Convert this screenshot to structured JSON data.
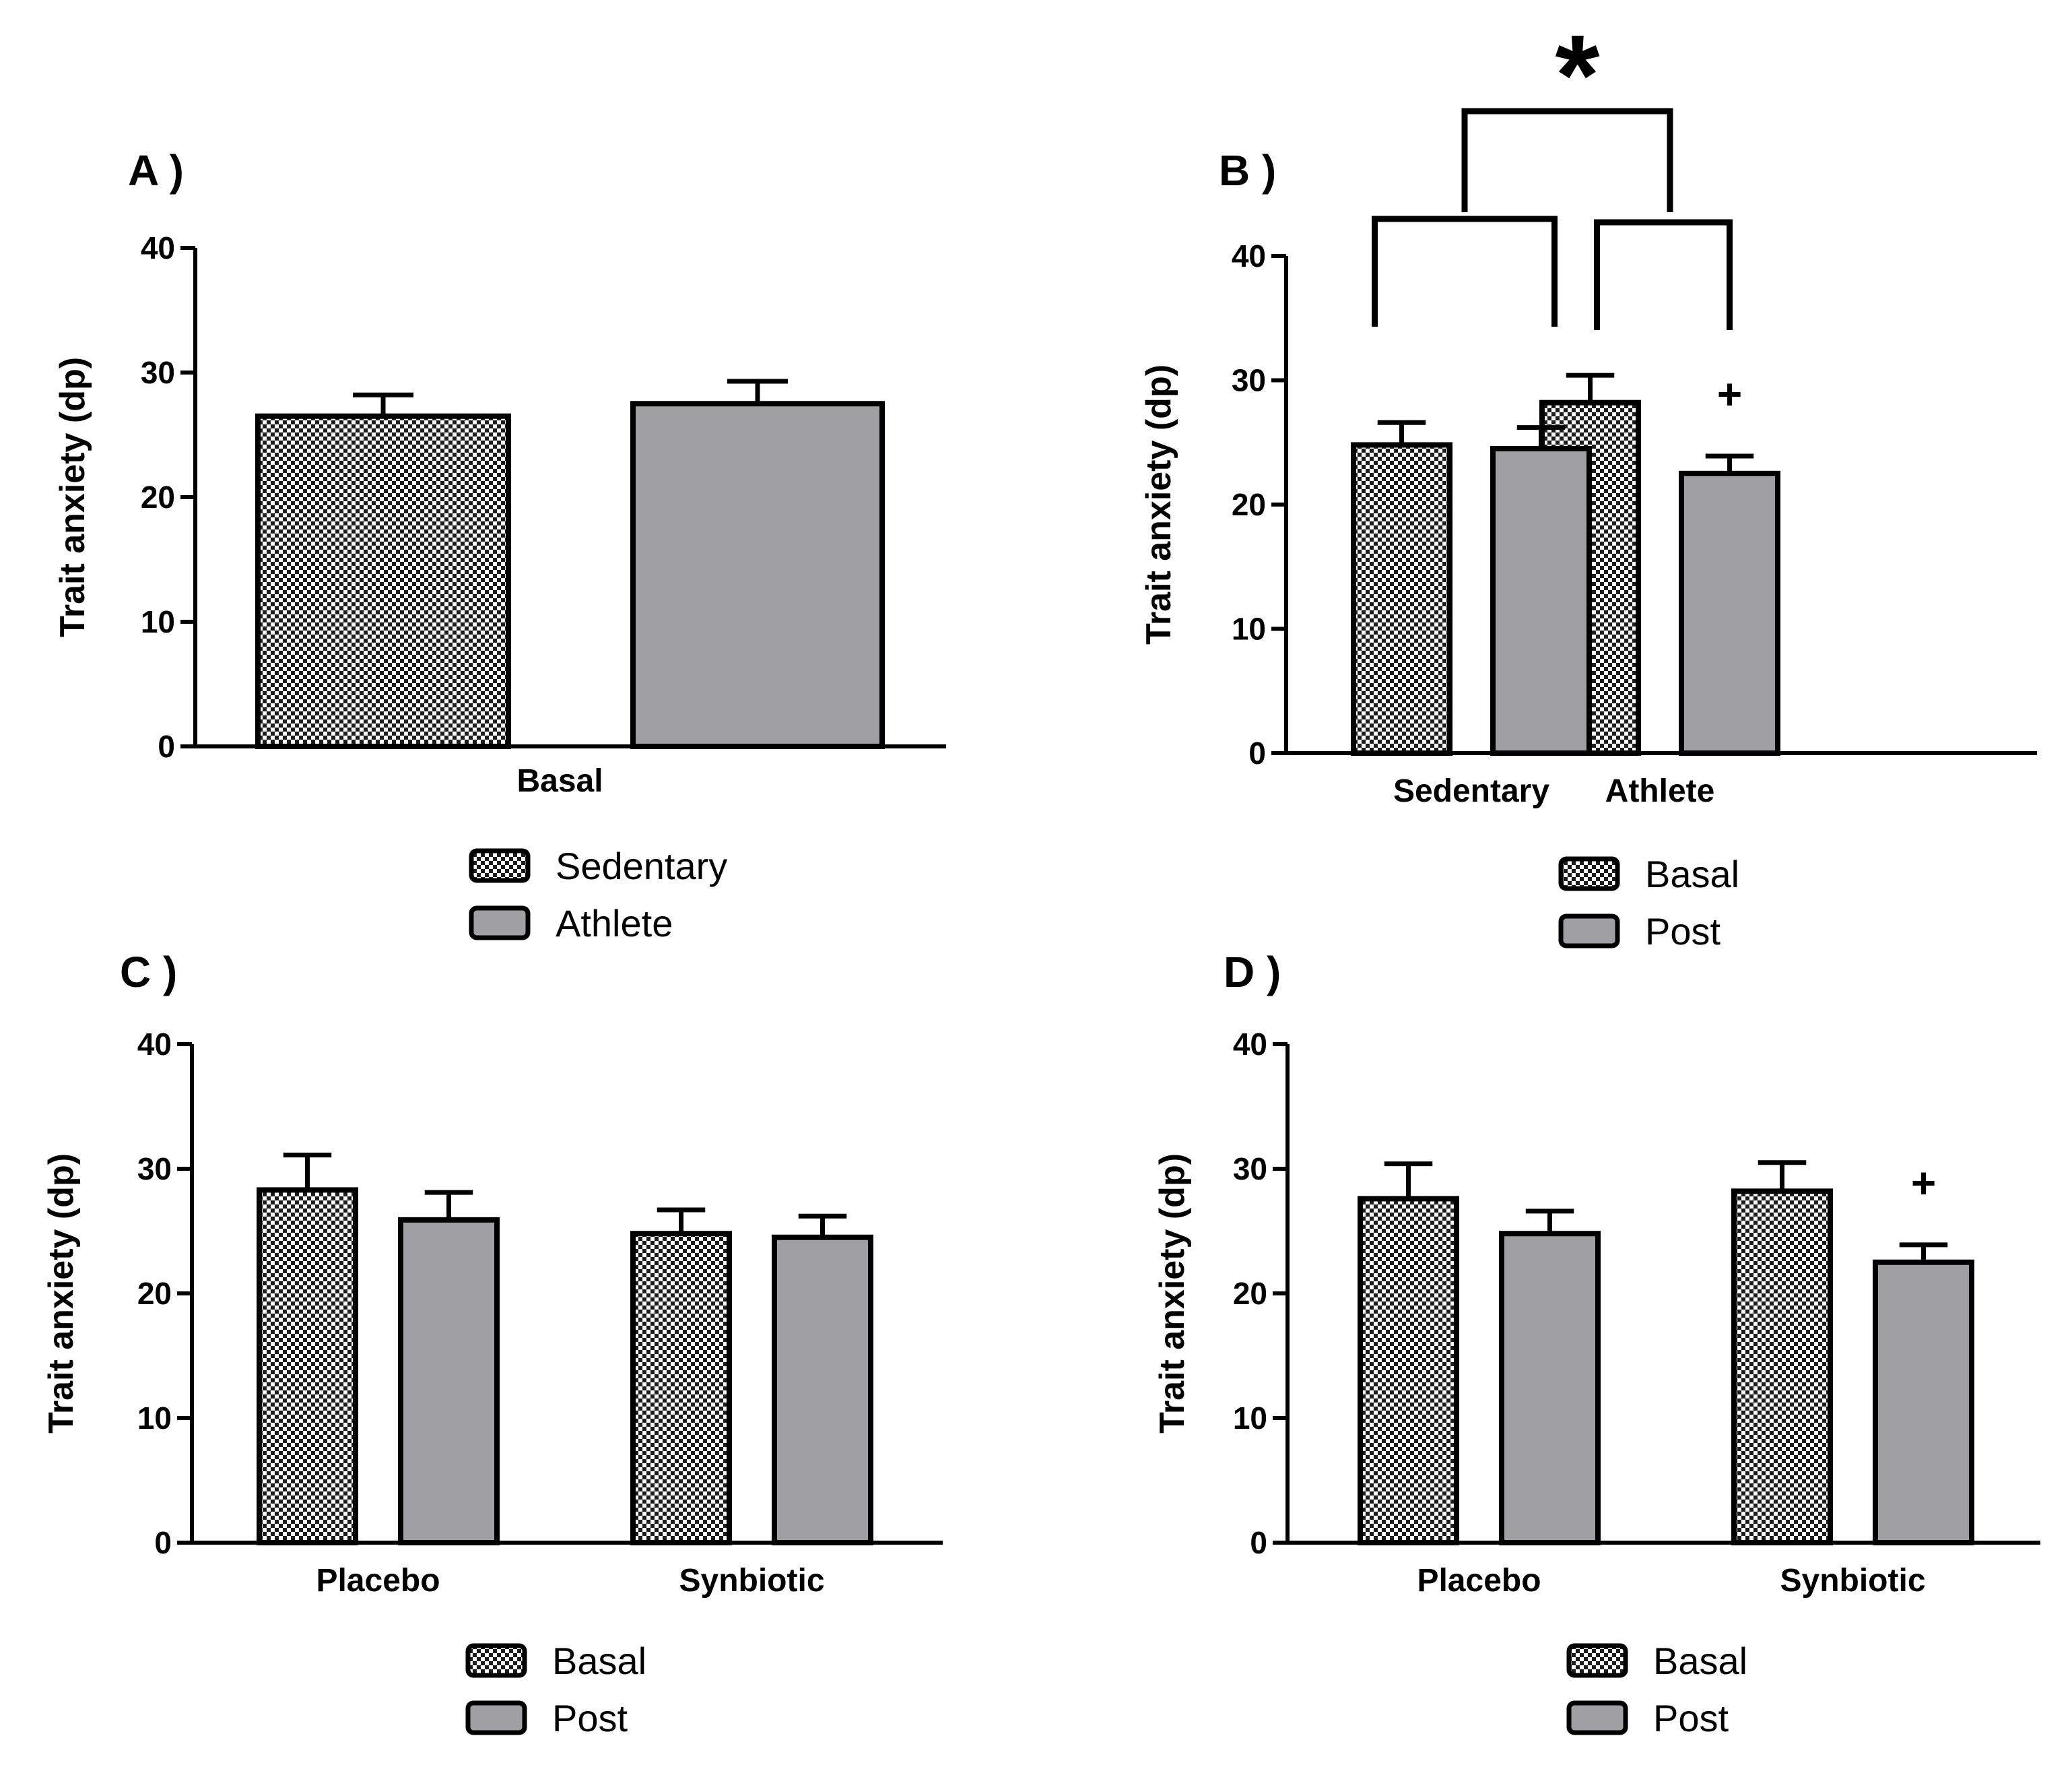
{
  "colors": {
    "post_fill": "#a0a0a4",
    "basal_pattern_dark": "#1c1c1c",
    "basal_pattern_light": "#ffffff",
    "ink": "#000000"
  },
  "chart_data": [
    {
      "panel": "A )",
      "type": "bar",
      "ylabel": "Trait anxiety (dp)",
      "ylim": [
        0,
        40
      ],
      "yticks": [
        "0",
        "10",
        "20",
        "30",
        "40"
      ],
      "groups": [
        "Basal"
      ],
      "series": [
        {
          "name": "Sedentary",
          "fill": "checker",
          "values": [
            26.5
          ],
          "errors": [
            1.7
          ]
        },
        {
          "name": "Athlete",
          "fill": "gray",
          "values": [
            27.5
          ],
          "errors": [
            1.8
          ]
        }
      ],
      "legend": [
        "Sedentary",
        "Athlete"
      ],
      "annotations": []
    },
    {
      "panel": "B )",
      "type": "bar",
      "ylabel": "Trait anxiety (dp)",
      "ylim": [
        0,
        40
      ],
      "yticks": [
        "0",
        "10",
        "20",
        "30",
        "40"
      ],
      "groups": [
        "Sedentary",
        "Athlete"
      ],
      "series": [
        {
          "name": "Basal",
          "fill": "checker",
          "values": [
            24.8,
            28.2
          ],
          "errors": [
            1.8,
            2.2
          ]
        },
        {
          "name": "Post",
          "fill": "gray",
          "values": [
            24.5,
            22.5
          ],
          "errors": [
            1.7,
            1.4
          ]
        }
      ],
      "legend": [
        "Basal",
        "Post"
      ],
      "annotations": [
        "+",
        "*"
      ]
    },
    {
      "panel": "C )",
      "type": "bar",
      "ylabel": "Trait anxiety (dp)",
      "ylim": [
        0,
        40
      ],
      "yticks": [
        "0",
        "10",
        "20",
        "30",
        "40"
      ],
      "groups": [
        "Placebo",
        "Synbiotic"
      ],
      "series": [
        {
          "name": "Basal",
          "fill": "checker",
          "values": [
            28.3,
            24.8
          ],
          "errors": [
            2.8,
            1.9
          ]
        },
        {
          "name": "Post",
          "fill": "gray",
          "values": [
            25.9,
            24.5
          ],
          "errors": [
            2.2,
            1.7
          ]
        }
      ],
      "legend": [
        "Basal",
        "Post"
      ],
      "annotations": []
    },
    {
      "panel": "D )",
      "type": "bar",
      "ylabel": "Trait anxiety (dp)",
      "ylim": [
        0,
        40
      ],
      "yticks": [
        "0",
        "10",
        "20",
        "30",
        "40"
      ],
      "groups": [
        "Placebo",
        "Synbiotic"
      ],
      "series": [
        {
          "name": "Basal",
          "fill": "checker",
          "values": [
            27.6,
            28.2
          ],
          "errors": [
            2.8,
            2.3
          ]
        },
        {
          "name": "Post",
          "fill": "gray",
          "values": [
            24.8,
            22.5
          ],
          "errors": [
            1.8,
            1.4
          ]
        }
      ],
      "legend": [
        "Basal",
        "Post"
      ],
      "annotations": [
        "+"
      ]
    }
  ]
}
